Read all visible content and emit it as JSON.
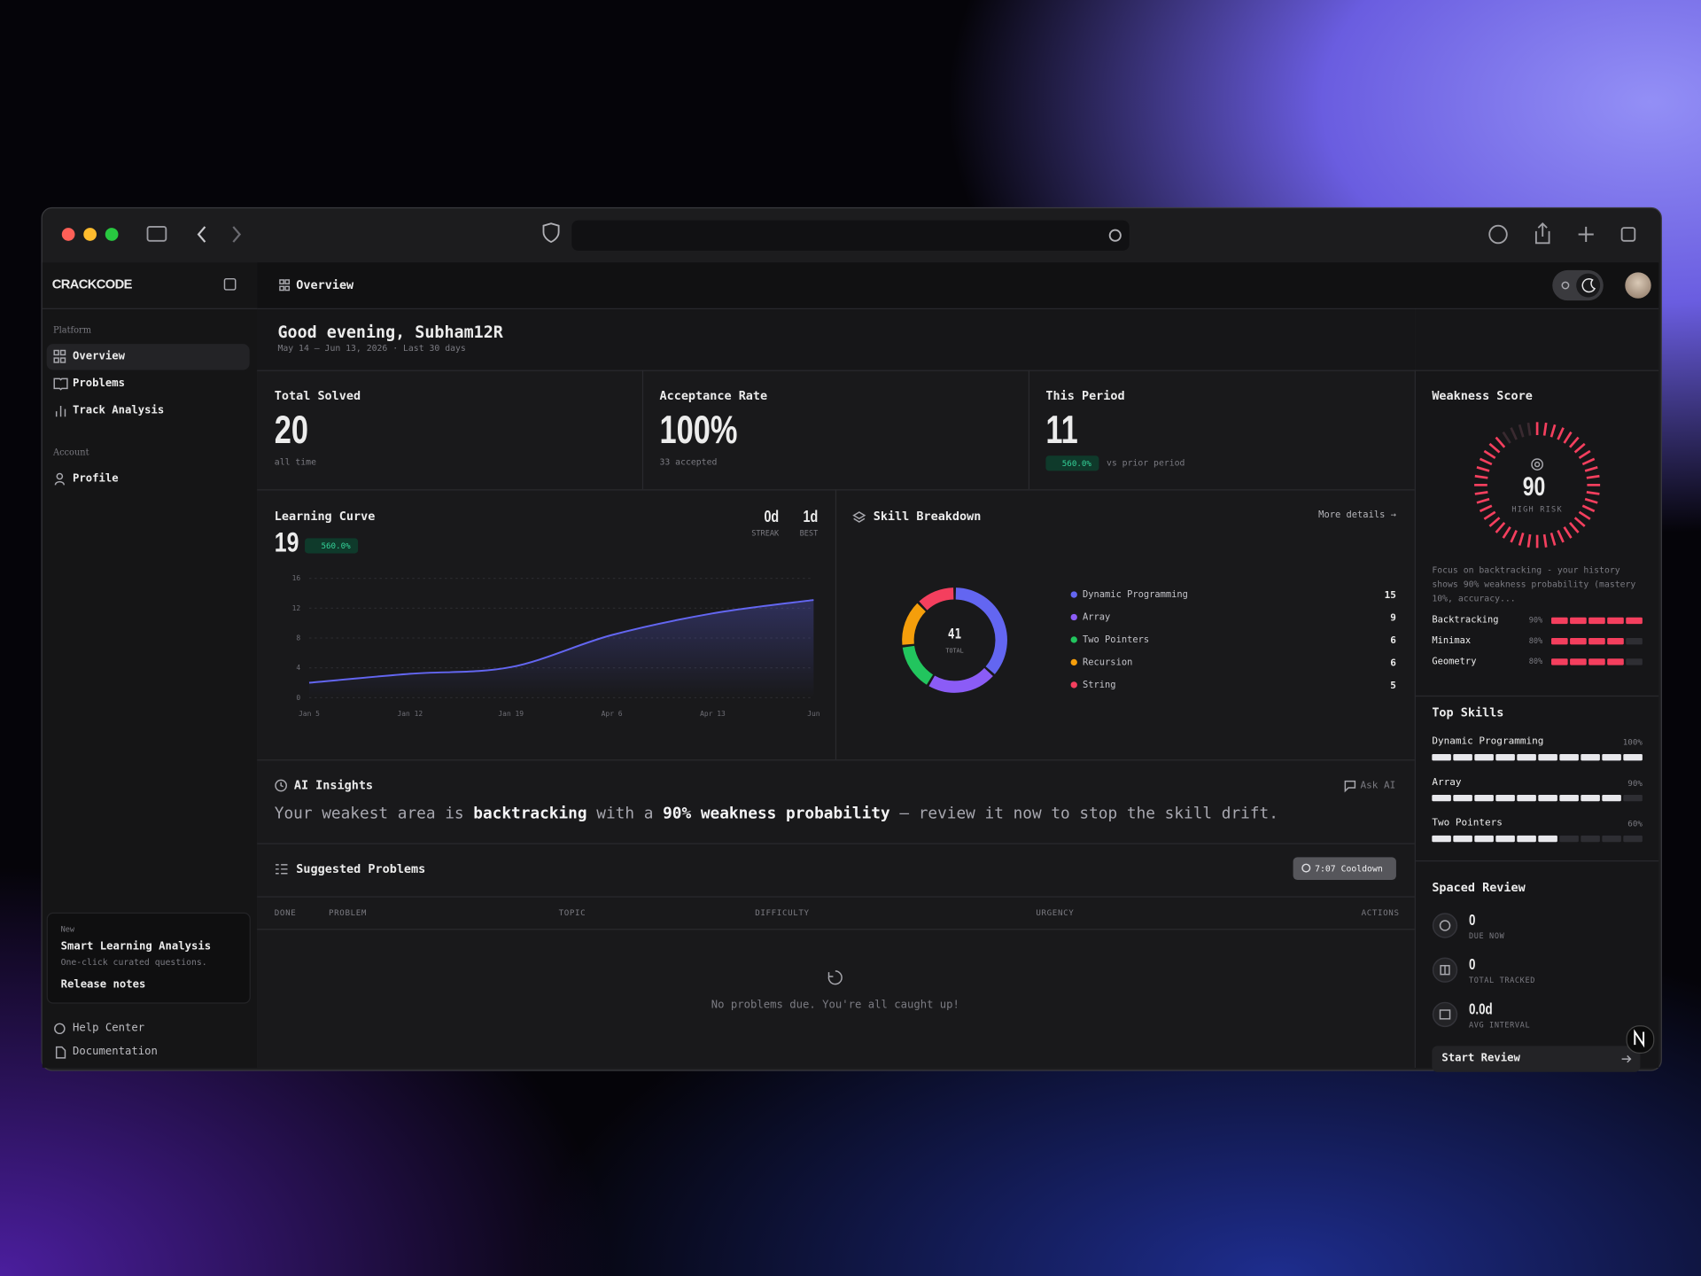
{
  "sidebar": {
    "logo": "CRACKCODE",
    "sections": [
      {
        "label": "Platform",
        "items": [
          "Overview",
          "Problems",
          "Track Analysis"
        ]
      },
      {
        "label": "Account",
        "items": [
          "Profile"
        ]
      }
    ],
    "promo": {
      "tag": "New",
      "title": "Smart Learning Analysis",
      "text": "One-click curated questions.",
      "link": "Release notes"
    },
    "footer": [
      "Help Center",
      "Documentation"
    ]
  },
  "header": {
    "title": "Overview"
  },
  "greeting": {
    "title": "Good evening, Subham12R",
    "subtitle": "May 14 – Jun 13, 2026 · Last 30 days"
  },
  "stats": [
    {
      "label": "Total Solved",
      "value": "20",
      "note": "all time"
    },
    {
      "label": "Acceptance Rate",
      "value": "100%",
      "note": "33 accepted"
    },
    {
      "label": "This Period",
      "value": "11",
      "badge": "560.0%",
      "note": "vs prior period"
    }
  ],
  "chart_data": [
    {
      "type": "line",
      "title": "Learning Curve",
      "headline": "19",
      "badge": "560.0%",
      "streak": {
        "value": "0d",
        "label": "STREAK"
      },
      "best": {
        "value": "1d",
        "label": "BEST"
      },
      "categories": [
        "Jan 5",
        "Jan 12",
        "Jan 19",
        "Apr 6",
        "Apr 13",
        "Jun"
      ],
      "values": [
        2,
        3.2,
        4.1,
        8.4,
        11.3,
        13.1
      ],
      "color": "#6366f1",
      "ylim": [
        0,
        16
      ],
      "yticks": [
        0,
        4,
        8,
        12,
        16
      ],
      "grid": true
    },
    {
      "type": "donut",
      "title": "Skill Breakdown",
      "link": "More details →",
      "total": 41,
      "total_label": "TOTAL",
      "categories": [
        "Dynamic Programming",
        "Array",
        "Two Pointers",
        "Recursion",
        "String"
      ],
      "values": [
        15,
        9,
        6,
        6,
        5
      ],
      "colors": [
        "#6366f1",
        "#8b5cf6",
        "#22c55e",
        "#f59e0b",
        "#f43f5e"
      ]
    }
  ],
  "ai_insights": {
    "title": "AI Insights",
    "action": "Ask AI",
    "message": [
      {
        "text": "Your weakest area is ",
        "strong": false
      },
      {
        "text": "backtracking",
        "strong": true
      },
      {
        "text": " with a ",
        "strong": false
      },
      {
        "text": "90% weakness probability",
        "strong": true
      },
      {
        "text": " — review it now to stop the skill drift.",
        "strong": false
      }
    ]
  },
  "suggested_problems": {
    "title": "Suggested Problems",
    "cooldown": "7:07 Cooldown",
    "columns": [
      "DONE",
      "PROBLEM",
      "TOPIC",
      "DIFFICULTY",
      "URGENCY",
      "ACTIONS"
    ],
    "empty": "No problems due. You're all caught up!"
  },
  "weakness": {
    "title": "Weakness Score",
    "score": 90,
    "risk": "HIGH RISK",
    "color": "#f43f5e",
    "summary": "Focus on backtracking - your history shows 90% weakness probability (mastery 10%, accuracy...",
    "topics": [
      {
        "name": "Backtracking",
        "value": 90,
        "value_label": "90%"
      },
      {
        "name": "Minimax",
        "value": 80,
        "value_label": "80%"
      },
      {
        "name": "Geometry",
        "value": 80,
        "value_label": "80%"
      }
    ]
  },
  "top_skills": {
    "title": "Top Skills",
    "skills": [
      {
        "name": "Dynamic Programming",
        "value": 100,
        "value_label": "100%"
      },
      {
        "name": "Array",
        "value": 90,
        "value_label": "90%"
      },
      {
        "name": "Two Pointers",
        "value": 60,
        "value_label": "60%"
      }
    ]
  },
  "spaced_review": {
    "title": "Spaced Review",
    "items": [
      {
        "value": "0",
        "label": "DUE NOW"
      },
      {
        "value": "0",
        "label": "TOTAL TRACKED"
      },
      {
        "value": "0.0d",
        "label": "AVG INTERVAL"
      }
    ],
    "action": "Start Review"
  }
}
